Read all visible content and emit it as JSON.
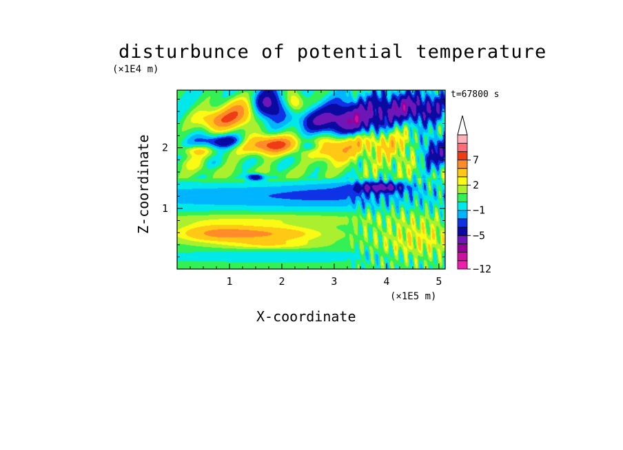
{
  "chart_data": {
    "type": "heatmap",
    "title": "disturbunce of potential temperature",
    "subtitle": "t=67800 s",
    "xlabel": "X-coordinate",
    "ylabel": "Z-coordinate",
    "x_unit": "(×1E5 m)",
    "y_unit": "(×1E4 m)",
    "xlim": [
      0,
      5.12
    ],
    "ylim": [
      0,
      2.95
    ],
    "x_ticks": [
      "1",
      "2",
      "3",
      "4",
      "5"
    ],
    "y_ticks": [
      "1",
      "2"
    ],
    "colorbar": {
      "levels": [
        -12,
        -10,
        -8,
        -7,
        -5,
        -3,
        -2,
        -1,
        0,
        1,
        2,
        3,
        5,
        7,
        9,
        11
      ],
      "colors": [
        "#ee1faa",
        "#cc11a0",
        "#990099",
        "#6e16b8",
        "#0a0aa0",
        "#0f32e6",
        "#00b4ff",
        "#00e8e8",
        "#33f055",
        "#aaf02e",
        "#fafa14",
        "#ffc814",
        "#ff8c28",
        "#f03c14",
        "#ff6e78",
        "#ffb0b8"
      ],
      "labels": [
        {
          "text": "7",
          "value": 7
        },
        {
          "text": "2",
          "value": 2
        },
        {
          "text": "−1",
          "value": -1
        },
        {
          "text": "−5",
          "value": -5
        },
        {
          "text": "−12",
          "value": -12
        }
      ],
      "extend": "max"
    },
    "features": [
      {
        "x": 0.0,
        "z": 0.4,
        "sx": 6.0,
        "sz": 0.22,
        "amp": 0.6
      },
      {
        "x": 1.6,
        "z": 0.58,
        "sx": 0.8,
        "sz": 0.09,
        "amp": 4.5
      },
      {
        "x": 0.7,
        "z": 0.6,
        "sx": 0.5,
        "sz": 0.1,
        "amp": 3.0
      },
      {
        "x": 1.8,
        "z": 0.4,
        "sx": 0.6,
        "sz": 0.05,
        "amp": 2.0
      },
      {
        "x": 1.8,
        "z": 0.22,
        "sx": 1.8,
        "sz": 0.06,
        "amp": -1.2
      },
      {
        "x": 1.6,
        "z": 0.82,
        "sx": 1.8,
        "sz": 0.08,
        "amp": 1.8
      },
      {
        "x": 1.6,
        "z": 1.2,
        "sx": 2.3,
        "sz": 0.14,
        "amp": -1.8
      },
      {
        "x": 3.1,
        "z": 1.3,
        "sx": 0.8,
        "sz": 0.18,
        "amp": -1.0
      },
      {
        "x": 1.8,
        "z": 1.55,
        "sx": 1.4,
        "sz": 0.1,
        "amp": 1.2
      },
      {
        "x": 1.5,
        "z": 1.52,
        "sx": 0.12,
        "sz": 0.04,
        "amp": -6.0
      },
      {
        "x": 0.8,
        "z": 2.45,
        "sx": 0.3,
        "sz": 0.12,
        "amp": 5.5
      },
      {
        "x": 0.55,
        "z": 1.75,
        "sx": 0.3,
        "sz": 0.08,
        "amp": 4.0
      },
      {
        "x": 1.2,
        "z": 2.6,
        "sx": 0.25,
        "sz": 0.15,
        "amp": 5.0
      },
      {
        "x": 1.4,
        "z": 2.05,
        "sx": 0.5,
        "sz": 0.12,
        "amp": 2.5
      },
      {
        "x": 1.85,
        "z": 2.05,
        "sx": 0.35,
        "sz": 0.1,
        "amp": 6.5
      },
      {
        "x": 0.9,
        "z": 2.1,
        "sx": 0.35,
        "sz": 0.08,
        "amp": -5.5
      },
      {
        "x": 0.65,
        "z": 1.75,
        "sx": 0.2,
        "sz": 0.07,
        "amp": -4.0
      },
      {
        "x": 1.75,
        "z": 2.7,
        "sx": 0.2,
        "sz": 0.18,
        "amp": -6.0
      },
      {
        "x": 2.25,
        "z": 2.75,
        "sx": 0.12,
        "sz": 0.12,
        "amp": 4.0
      },
      {
        "x": 2.6,
        "z": 2.45,
        "sx": 0.25,
        "sz": 0.12,
        "amp": -2.5
      },
      {
        "x": 3.3,
        "z": 2.45,
        "sx": 0.45,
        "sz": 0.2,
        "amp": -6.5
      },
      {
        "x": 4.45,
        "z": 2.65,
        "sx": 0.55,
        "sz": 0.18,
        "amp": -6.0
      },
      {
        "x": 4.9,
        "z": 1.95,
        "sx": 0.25,
        "sz": 0.2,
        "amp": -5.0
      },
      {
        "x": 3.9,
        "z": 1.35,
        "sx": 0.35,
        "sz": 0.06,
        "amp": -5.5
      },
      {
        "x": 3.0,
        "z": 1.95,
        "sx": 0.3,
        "sz": 0.15,
        "amp": 4.5
      },
      {
        "x": 3.5,
        "z": 2.1,
        "sx": 0.4,
        "sz": 0.12,
        "amp": 3.0
      },
      {
        "x": 4.3,
        "z": 2.0,
        "sx": 0.5,
        "sz": 0.3,
        "amp": 2.5
      },
      {
        "x": 4.6,
        "z": 0.5,
        "sx": 0.5,
        "sz": 0.25,
        "amp": 2.0
      },
      {
        "x": 0.35,
        "z": 1.95,
        "sx": 0.2,
        "sz": 0.06,
        "amp": 3.0
      },
      {
        "x": 2.55,
        "z": 2.02,
        "sx": 0.15,
        "sz": 0.06,
        "amp": -3.0
      }
    ]
  }
}
